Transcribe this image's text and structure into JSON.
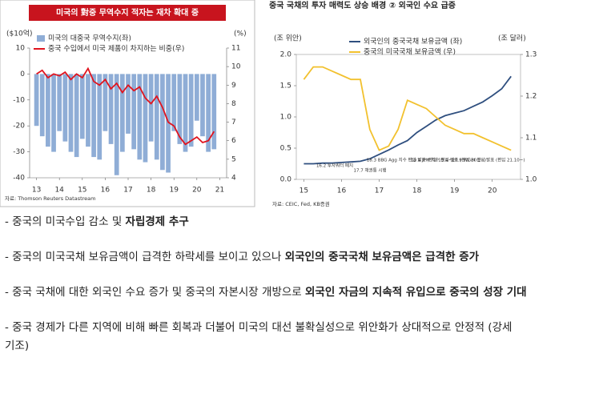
{
  "chart_data": [
    {
      "type": "bar",
      "title": "미국의 對중 무역수지 적자는 재차 확대 중",
      "y_label": "($10억)",
      "y2_label": "(%)",
      "source": "자료: Thomson Reuters Datastream",
      "x": [
        13,
        13.25,
        13.5,
        13.75,
        14,
        14.25,
        14.5,
        14.75,
        15,
        15.25,
        15.5,
        15.75,
        16,
        16.25,
        16.5,
        16.75,
        17,
        17.25,
        17.5,
        17.75,
        18,
        18.25,
        18.5,
        18.75,
        19,
        19.25,
        19.5,
        19.75,
        20,
        20.25,
        20.5,
        20.75
      ],
      "xlim": [
        12.7,
        21.3
      ],
      "xticks": [
        13,
        14,
        15,
        16,
        17,
        18,
        19,
        20,
        21
      ],
      "ylim": [
        -40,
        10
      ],
      "yticks": [
        10,
        0,
        -10,
        -20,
        -30,
        -40
      ],
      "y2lim": [
        4,
        11
      ],
      "y2ticks": [
        11,
        10,
        9,
        8,
        7,
        6,
        5,
        4
      ],
      "series": [
        {
          "name": "미국의 대중국 무역수지(좌)",
          "type": "bar",
          "color": "#8fadd6",
          "values": [
            -20,
            -24,
            -28,
            -30,
            -22,
            -26,
            -30,
            -32,
            -25,
            -28,
            -32,
            -33,
            -22,
            -27,
            -39,
            -30,
            -23,
            -29,
            -33,
            -34,
            -26,
            -33,
            -37,
            -38,
            -22,
            -27,
            -30,
            -28,
            -18,
            -24,
            -30,
            -29
          ]
        },
        {
          "name": "중국 수입에서 미국 제품이 차지하는 비중(우)",
          "type": "line",
          "axis": "y2",
          "color": "#e0141e",
          "values": [
            9.6,
            9.8,
            9.4,
            9.6,
            9.5,
            9.7,
            9.3,
            9.6,
            9.4,
            9.9,
            9.2,
            9.0,
            9.3,
            8.8,
            9.1,
            8.6,
            9.0,
            8.7,
            8.9,
            8.3,
            8.0,
            8.4,
            7.8,
            7.0,
            6.8,
            6.2,
            5.8,
            6.0,
            6.2,
            5.9,
            6.0,
            6.5
          ]
        }
      ]
    },
    {
      "type": "line",
      "title": "중국 국채의 투자 매력도 상승 배경 ② 외국인 수요 급증",
      "y_label": "(조 위안)",
      "y2_label": "(조 달러)",
      "source": "자료: CEIC, Fed, KB증권",
      "x": [
        15,
        15.25,
        15.5,
        15.75,
        16,
        16.25,
        16.5,
        16.75,
        17,
        17.25,
        17.5,
        17.75,
        18,
        18.25,
        18.5,
        18.75,
        19,
        19.25,
        19.5,
        19.75,
        20,
        20.25,
        20.5
      ],
      "xlim": [
        14.8,
        20.75
      ],
      "xticks": [
        15,
        16,
        17,
        18,
        19,
        20
      ],
      "ylim": [
        0,
        2
      ],
      "yticks": [
        {
          "value": 0,
          "label": "0.0"
        },
        0.5,
        {
          "value": 1,
          "label": "1.0"
        },
        1.5,
        {
          "value": 2,
          "label": "2.0"
        }
      ],
      "y2lim": [
        1,
        1.3
      ],
      "y2ticks": [
        {
          "value": 1,
          "label": "1.0"
        },
        1.1,
        1.2,
        1.3
      ],
      "series": [
        {
          "name": "외국인의 중국국채 보유금액 (좌)",
          "type": "line",
          "color": "#2f4f7f",
          "values": [
            0.25,
            0.25,
            0.26,
            0.26,
            0.27,
            0.28,
            0.29,
            0.33,
            0.4,
            0.47,
            0.55,
            0.62,
            0.75,
            0.85,
            0.95,
            1.02,
            1.06,
            1.1,
            1.17,
            1.24,
            1.34,
            1.45,
            1.65
          ]
        },
        {
          "name": "중국의 미국국채 보유금액 (우)",
          "type": "line",
          "axis": "y2",
          "color": "#f2c12e",
          "values": [
            1.24,
            1.27,
            1.27,
            1.26,
            1.25,
            1.24,
            1.24,
            1.12,
            1.07,
            1.08,
            1.12,
            1.19,
            1.18,
            1.17,
            1.15,
            1.13,
            1.12,
            1.11,
            1.11,
            1.1,
            1.09,
            1.08,
            1.07
          ]
        }
      ],
      "annotations": [
        "16.2 투자쿼터 폐지",
        "17.7 채권통 시행",
        "18.3 BBG Agg 지수 편입 발표 (편입 19.4~)",
        "19.4 JPM 지수 편입 발표 (편입 20.2~)",
        "20.9 WGBI 편입 발표 (편입 21.10~)"
      ]
    }
  ],
  "bullets": [
    {
      "text": "- 중국의 미국수입 감소 및 ",
      "bold": "자립경제 추구"
    },
    {
      "text": "- 중국의 미국국채 보유금액이 급격한 하락세를 보이고 있으나 ",
      "bold": "외국인의 중국국채 보유금액은 급격한 증가"
    },
    {
      "text": "- 중국 국채에 대한 외국인 수요 증가 및 중국의 자본시장 개방으로 ",
      "bold": "외국인 자금의 지속적 유입으로 중국의 성장 기대"
    },
    {
      "text": "- 중국 경제가 다른 지역에 비해 빠른 회복과 더불어 미국의 대선 불확실성으로 위안화가 상대적으로 안정적 (강세 기조)"
    }
  ]
}
